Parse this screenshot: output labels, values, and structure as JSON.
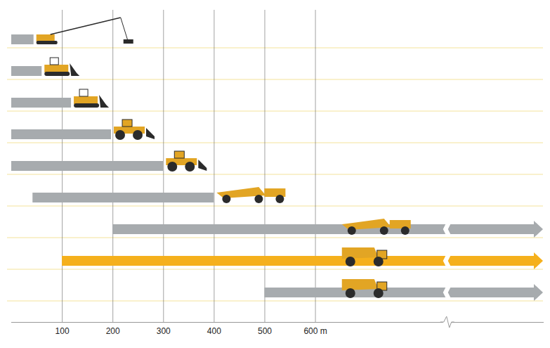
{
  "chart_data": {
    "type": "range_bar",
    "orientation": "horizontal",
    "categories": [
      null,
      null,
      null,
      null,
      null,
      null,
      null,
      null,
      null
    ],
    "starts": [
      0,
      0,
      0,
      0,
      0,
      42,
      200,
      100,
      500
    ],
    "ends": [
      44,
      60,
      118,
      197,
      300,
      400,
      null,
      null,
      null
    ],
    "colors": [
      "#a7abae",
      "#a7abae",
      "#a7abae",
      "#a7abae",
      "#a7abae",
      "#a7abae",
      "#a7abae",
      "#f5b01c",
      "#a7abae"
    ],
    "xlim": [
      0,
      1050
    ],
    "xticks": [
      100,
      200,
      300,
      400,
      500,
      {
        "value": 600,
        "label": "600 m"
      }
    ],
    "grid": true,
    "tick_labels": "x"
  }
}
